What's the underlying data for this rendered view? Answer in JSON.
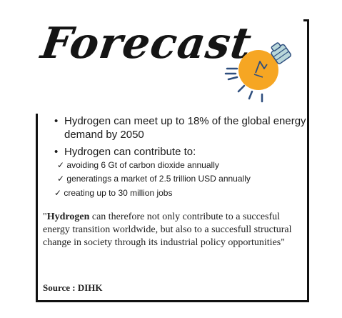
{
  "title": "Forecast",
  "bullets": [
    {
      "text": "Hydrogen can meet up to 18% of the global energy demand by 2050"
    },
    {
      "text": "Hydrogen can contribute to:"
    }
  ],
  "checks": [
    "✓ avoiding 6 Gt of carbon dioxide annually",
    "✓ generatings a market of 2.5 trillion USD annually",
    "✓ creating up to 30 million jobs"
  ],
  "quote": {
    "open": "\"",
    "bold": "Hydrogen",
    "rest": " can therefore not only contribute to a succesful energy transition worldwide, but also to a succesfull structural change in society through its industrial policy opportunities\""
  },
  "source": "Source : DIHK",
  "icon": "light-bulb-icon",
  "colors": {
    "bulb": "#f5a623",
    "rays": "#2e4e7e",
    "text": "#1a1a1a"
  }
}
